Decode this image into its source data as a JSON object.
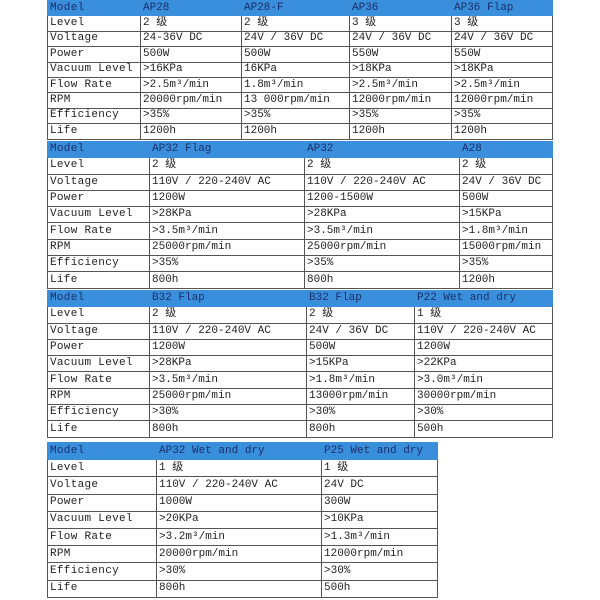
{
  "header_color": "#3a8fdc",
  "tables": [
    {
      "models": [
        "AP28",
        "AP28-F",
        "AP36",
        "AP36 Flap"
      ],
      "rows": [
        {
          "label": "Level",
          "values": [
            "2 级",
            "2 级",
            "3 级",
            "3 级"
          ]
        },
        {
          "label": "Voltage",
          "values": [
            "24-36V DC",
            " 24V / 36V DC",
            "24V / 36V DC",
            "24V / 36V DC"
          ]
        },
        {
          "label": "Power",
          "values": [
            "500W",
            "500W",
            "550W",
            "550W"
          ]
        },
        {
          "label": "Vacuum Level",
          "values": [
            ">16KPa",
            "16KPa",
            ">18KPa",
            ">18KPa"
          ]
        },
        {
          "label": "Flow Rate",
          "values": [
            ">2.5m³/min",
            "1.8m³/min",
            ">2.5m³/min",
            ">2.5m³/min"
          ]
        },
        {
          "label": "RPM",
          "values": [
            "20000rpm/min",
            "13 000rpm/min",
            "12000rpm/min",
            "12000rpm/min"
          ]
        },
        {
          "label": "Efficiency",
          "values": [
            ">35%",
            ">35%",
            ">35%",
            ">35%"
          ]
        },
        {
          "label": "Life",
          "values": [
            "1200h",
            "1200h",
            "1200h",
            "1200h"
          ]
        }
      ],
      "header_label": "Model"
    },
    {
      "models": [
        "AP32 Flag",
        "AP32",
        "A28"
      ],
      "rows": [
        {
          "label": "Level",
          "values": [
            "2 级",
            "2 级",
            "2 级"
          ]
        },
        {
          "label": "Voltage",
          "values": [
            "110V / 220-240V AC",
            "110V / 220-240V AC",
            "24V / 36V DC"
          ]
        },
        {
          "label": "Power",
          "values": [
            "1200W",
            "1200-1500W",
            "500W"
          ]
        },
        {
          "label": "Vacuum Level",
          "values": [
            ">28KPa",
            ">28KPa",
            ">15KPa"
          ]
        },
        {
          "label": "Flow Rate",
          "values": [
            ">3.5m³/min",
            ">3.5m³/min",
            ">1.8m³/min"
          ]
        },
        {
          "label": "RPM",
          "values": [
            "25000rpm/min",
            "25000rpm/min",
            "15000rpm/min"
          ]
        },
        {
          "label": "Efficiency",
          "values": [
            ">35%",
            ">35%",
            ">35%"
          ]
        },
        {
          "label": "Life",
          "values": [
            "800h",
            "800h",
            "1200h"
          ]
        }
      ],
      "header_label": "Model"
    },
    {
      "models": [
        "B32 Flap",
        "B32 Flap",
        "P22 Wet and dry"
      ],
      "rows": [
        {
          "label": "Level",
          "values": [
            "2 级",
            "2 级",
            "1 级"
          ]
        },
        {
          "label": "Voltage",
          "values": [
            "110V / 220-240V AC",
            "24V / 36V DC",
            "110V / 220-240V AC"
          ]
        },
        {
          "label": "Power",
          "values": [
            "1200W",
            "500W",
            "1200W"
          ]
        },
        {
          "label": "Vacuum Level",
          "values": [
            ">28KPa",
            ">15KPa",
            ">22KPa"
          ]
        },
        {
          "label": "Flow Rate",
          "values": [
            ">3.5m³/min",
            ">1.8m³/min",
            ">3.0m³/min"
          ]
        },
        {
          "label": "RPM",
          "values": [
            "25000rpm/min",
            "13000rpm/min",
            "30000rpm/min"
          ]
        },
        {
          "label": "Efficiency",
          "values": [
            ">30%",
            ">30%",
            ">30%"
          ]
        },
        {
          "label": "Life",
          "values": [
            "800h",
            "800h",
            "500h"
          ]
        }
      ],
      "header_label": "Model"
    },
    {
      "models": [
        "AP32  Wet and dry",
        "P25 Wet and dry"
      ],
      "rows": [
        {
          "label": "Level",
          "values": [
            "1 级",
            "1 级"
          ]
        },
        {
          "label": "Voltage",
          "values": [
            "110V / 220-240V AC",
            "24V DC"
          ]
        },
        {
          "label": "Power",
          "values": [
            "1000W",
            "300W"
          ]
        },
        {
          "label": "Vacuum Level",
          "values": [
            ">20KPa",
            ">10KPa"
          ]
        },
        {
          "label": "Flow Rate",
          "values": [
            ">3.2m³/min",
            ">1.3m³/min"
          ]
        },
        {
          "label": "RPM",
          "values": [
            "20000rpm/min",
            "12000rpm/min"
          ]
        },
        {
          "label": "Efficiency",
          "values": [
            ">30%",
            ">30%"
          ]
        },
        {
          "label": "Life",
          "values": [
            "800h",
            "500h"
          ]
        }
      ],
      "header_label": "Model"
    }
  ]
}
